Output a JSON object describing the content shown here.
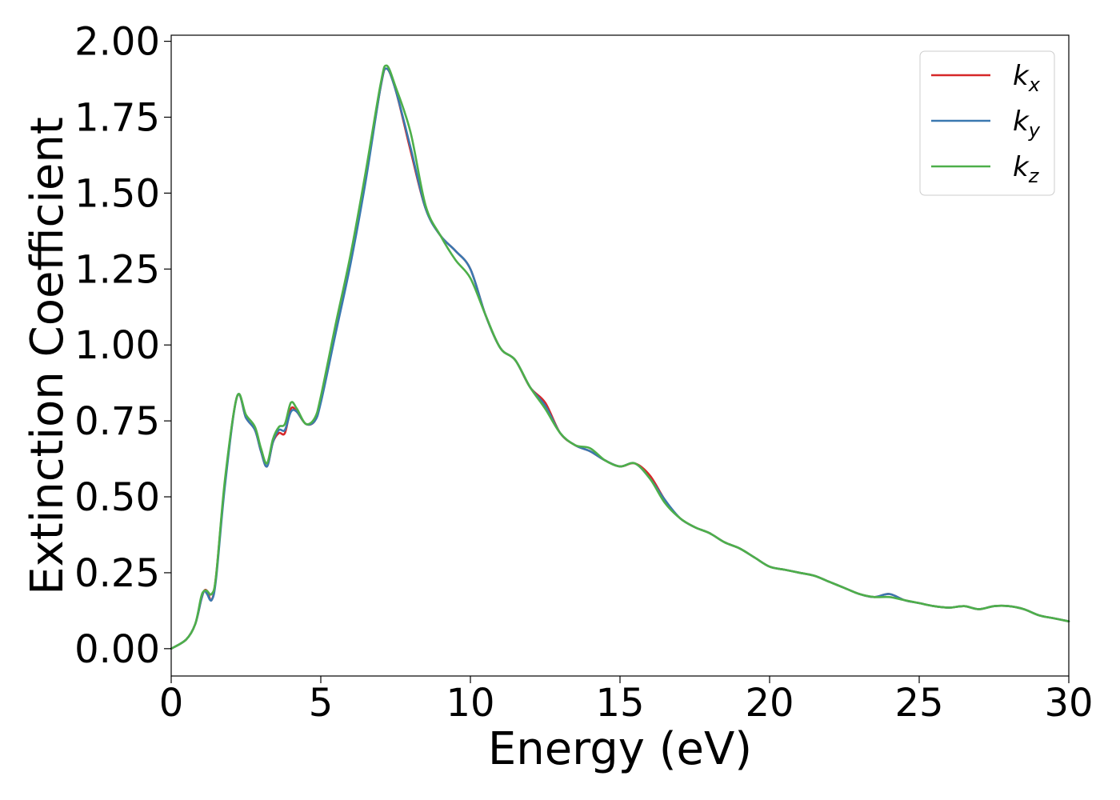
{
  "chart_data": {
    "type": "line",
    "xlabel": "Energy (eV)",
    "ylabel": "Extinction Coefficient",
    "xlim": [
      0,
      30
    ],
    "ylim": [
      -0.09,
      2.02
    ],
    "x_ticks": [
      "0",
      "5",
      "10",
      "15",
      "20",
      "25",
      "30"
    ],
    "y_ticks": [
      "0.00",
      "0.25",
      "0.50",
      "0.75",
      "1.00",
      "1.25",
      "1.50",
      "1.75",
      "2.00"
    ],
    "grid": false,
    "legend_position": "top-right",
    "series": [
      {
        "name": "k_x",
        "label_main": "k",
        "label_sub": "x",
        "color": "#d62728",
        "x": [
          0,
          0.5,
          0.8,
          1.0,
          1.1,
          1.2,
          1.35,
          1.5,
          1.8,
          2.2,
          2.5,
          2.8,
          3.0,
          3.2,
          3.4,
          3.6,
          3.8,
          4.0,
          4.2,
          4.5,
          4.8,
          5.0,
          5.5,
          6.0,
          6.5,
          7.0,
          7.2,
          7.5,
          8.0,
          8.5,
          9.0,
          9.5,
          10.0,
          10.5,
          11.0,
          11.5,
          12.0,
          12.5,
          13.0,
          13.5,
          14.0,
          14.5,
          15.0,
          15.5,
          16.0,
          16.5,
          17.0,
          17.5,
          18.0,
          18.5,
          19.0,
          19.5,
          20.0,
          20.5,
          21.0,
          21.5,
          22.0,
          22.5,
          23.0,
          23.5,
          24.0,
          24.5,
          25.0,
          25.5,
          26.0,
          26.5,
          27.0,
          27.5,
          28.0,
          28.5,
          29.0,
          29.5,
          30.0
        ],
        "y": [
          0.0,
          0.03,
          0.08,
          0.16,
          0.19,
          0.19,
          0.16,
          0.24,
          0.55,
          0.83,
          0.76,
          0.72,
          0.65,
          0.6,
          0.68,
          0.71,
          0.71,
          0.79,
          0.78,
          0.74,
          0.75,
          0.82,
          1.05,
          1.28,
          1.55,
          1.85,
          1.91,
          1.84,
          1.64,
          1.45,
          1.36,
          1.31,
          1.25,
          1.1,
          0.99,
          0.95,
          0.86,
          0.81,
          0.71,
          0.67,
          0.65,
          0.62,
          0.6,
          0.61,
          0.57,
          0.49,
          0.43,
          0.4,
          0.38,
          0.35,
          0.33,
          0.3,
          0.27,
          0.26,
          0.25,
          0.24,
          0.22,
          0.2,
          0.18,
          0.17,
          0.18,
          0.16,
          0.15,
          0.14,
          0.135,
          0.14,
          0.13,
          0.14,
          0.14,
          0.13,
          0.11,
          0.1,
          0.09
        ]
      },
      {
        "name": "k_y",
        "label_main": "k",
        "label_sub": "y",
        "color": "#3a78b0",
        "x": [
          0,
          0.5,
          0.8,
          1.0,
          1.1,
          1.2,
          1.35,
          1.5,
          1.8,
          2.2,
          2.5,
          2.8,
          3.0,
          3.2,
          3.4,
          3.6,
          3.8,
          4.0,
          4.2,
          4.5,
          4.8,
          5.0,
          5.5,
          6.0,
          6.5,
          7.0,
          7.2,
          7.5,
          8.0,
          8.5,
          9.0,
          9.5,
          10.0,
          10.5,
          11.0,
          11.5,
          12.0,
          12.5,
          13.0,
          13.5,
          14.0,
          14.5,
          15.0,
          15.5,
          16.0,
          16.5,
          17.0,
          17.5,
          18.0,
          18.5,
          19.0,
          19.5,
          20.0,
          20.5,
          21.0,
          21.5,
          22.0,
          22.5,
          23.0,
          23.5,
          24.0,
          24.5,
          25.0,
          25.5,
          26.0,
          26.5,
          27.0,
          27.5,
          28.0,
          28.5,
          29.0,
          29.5,
          30.0
        ],
        "y": [
          0.0,
          0.03,
          0.08,
          0.16,
          0.19,
          0.18,
          0.16,
          0.23,
          0.54,
          0.83,
          0.76,
          0.72,
          0.65,
          0.6,
          0.68,
          0.72,
          0.72,
          0.78,
          0.78,
          0.74,
          0.75,
          0.81,
          1.04,
          1.27,
          1.54,
          1.85,
          1.91,
          1.84,
          1.65,
          1.45,
          1.36,
          1.31,
          1.25,
          1.1,
          0.99,
          0.95,
          0.86,
          0.8,
          0.71,
          0.67,
          0.65,
          0.62,
          0.6,
          0.61,
          0.56,
          0.49,
          0.43,
          0.4,
          0.38,
          0.35,
          0.33,
          0.3,
          0.27,
          0.26,
          0.25,
          0.24,
          0.22,
          0.2,
          0.18,
          0.17,
          0.18,
          0.16,
          0.15,
          0.14,
          0.135,
          0.14,
          0.13,
          0.14,
          0.14,
          0.13,
          0.11,
          0.1,
          0.09
        ]
      },
      {
        "name": "k_z",
        "label_main": "k",
        "label_sub": "z",
        "color": "#4daf4a",
        "x": [
          0,
          0.5,
          0.8,
          1.0,
          1.1,
          1.2,
          1.35,
          1.5,
          1.8,
          2.2,
          2.5,
          2.8,
          3.0,
          3.2,
          3.4,
          3.6,
          3.8,
          4.0,
          4.2,
          4.5,
          4.8,
          5.0,
          5.5,
          6.0,
          6.5,
          7.0,
          7.2,
          7.5,
          8.0,
          8.5,
          9.0,
          9.5,
          10.0,
          10.5,
          11.0,
          11.5,
          12.0,
          12.5,
          13.0,
          13.5,
          14.0,
          14.5,
          15.0,
          15.5,
          16.0,
          16.5,
          17.0,
          17.5,
          18.0,
          18.5,
          19.0,
          19.5,
          20.0,
          20.5,
          21.0,
          21.5,
          22.0,
          22.5,
          23.0,
          23.5,
          24.0,
          24.5,
          25.0,
          25.5,
          26.0,
          26.5,
          27.0,
          27.5,
          28.0,
          28.5,
          29.0,
          29.5,
          30.0
        ],
        "y": [
          0.0,
          0.03,
          0.08,
          0.17,
          0.19,
          0.19,
          0.18,
          0.24,
          0.56,
          0.83,
          0.77,
          0.73,
          0.66,
          0.61,
          0.69,
          0.73,
          0.74,
          0.81,
          0.79,
          0.74,
          0.76,
          0.83,
          1.07,
          1.3,
          1.57,
          1.86,
          1.92,
          1.85,
          1.7,
          1.46,
          1.36,
          1.28,
          1.22,
          1.1,
          0.99,
          0.95,
          0.86,
          0.79,
          0.71,
          0.67,
          0.66,
          0.62,
          0.6,
          0.61,
          0.56,
          0.48,
          0.43,
          0.4,
          0.38,
          0.35,
          0.33,
          0.3,
          0.27,
          0.26,
          0.25,
          0.24,
          0.22,
          0.2,
          0.18,
          0.17,
          0.17,
          0.16,
          0.15,
          0.14,
          0.135,
          0.14,
          0.13,
          0.14,
          0.14,
          0.13,
          0.11,
          0.1,
          0.09
        ]
      }
    ]
  }
}
